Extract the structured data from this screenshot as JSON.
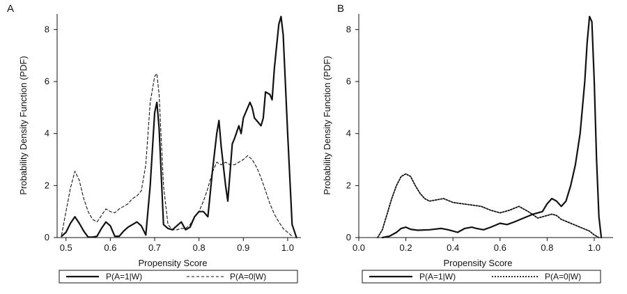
{
  "chart_data": [
    {
      "panel_label": "A",
      "type": "line",
      "xlabel": "Propensity Score",
      "ylabel": "Probability Density Function (PDF)",
      "xlim": [
        0.48,
        1.03
      ],
      "ylim": [
        0,
        8.6
      ],
      "xticks": [
        0.5,
        0.6,
        0.7,
        0.8,
        0.9,
        1.0
      ],
      "xtick_labels": [
        "0.5",
        "0.6",
        "0.7",
        "0.8",
        "0.9",
        "1.0"
      ],
      "yticks": [
        0,
        2,
        4,
        6,
        8
      ],
      "ytick_labels": [
        "0",
        "2",
        "4",
        "6",
        "8"
      ],
      "legend_position": "bottom",
      "series": [
        {
          "name": "P(A=1|W)",
          "style": "solid",
          "x": [
            0.49,
            0.5,
            0.51,
            0.52,
            0.53,
            0.54,
            0.55,
            0.56,
            0.57,
            0.58,
            0.59,
            0.6,
            0.61,
            0.62,
            0.63,
            0.64,
            0.65,
            0.66,
            0.67,
            0.68,
            0.69,
            0.7,
            0.705,
            0.71,
            0.72,
            0.73,
            0.74,
            0.75,
            0.76,
            0.77,
            0.78,
            0.79,
            0.8,
            0.81,
            0.82,
            0.83,
            0.84,
            0.845,
            0.85,
            0.86,
            0.865,
            0.87,
            0.875,
            0.88,
            0.89,
            0.895,
            0.9,
            0.91,
            0.915,
            0.92,
            0.925,
            0.93,
            0.94,
            0.945,
            0.95,
            0.96,
            0.965,
            0.97,
            0.98,
            0.985,
            0.99,
            1.0,
            1.01,
            1.02
          ],
          "y": [
            0.05,
            0.2,
            0.55,
            0.8,
            0.55,
            0.25,
            0.02,
            0.02,
            0.05,
            0.35,
            0.6,
            0.45,
            0.05,
            0.05,
            0.25,
            0.4,
            0.5,
            0.6,
            0.45,
            0.1,
            2.0,
            4.8,
            5.2,
            4.2,
            0.5,
            0.35,
            0.3,
            0.45,
            0.6,
            0.3,
            0.4,
            0.8,
            1.0,
            1.0,
            0.8,
            2.5,
            4.0,
            4.5,
            3.5,
            2.0,
            1.4,
            2.5,
            3.6,
            3.8,
            4.3,
            4.0,
            4.6,
            5.0,
            5.2,
            5.0,
            4.6,
            4.5,
            4.3,
            4.6,
            5.6,
            5.5,
            5.3,
            6.5,
            8.2,
            8.5,
            7.8,
            4.0,
            0.5,
            0.0
          ]
        },
        {
          "name": "P(A=0|W)",
          "style": "dashed",
          "x": [
            0.49,
            0.5,
            0.51,
            0.52,
            0.53,
            0.54,
            0.55,
            0.56,
            0.57,
            0.58,
            0.59,
            0.6,
            0.61,
            0.62,
            0.63,
            0.64,
            0.65,
            0.66,
            0.67,
            0.68,
            0.69,
            0.7,
            0.705,
            0.71,
            0.72,
            0.73,
            0.74,
            0.75,
            0.76,
            0.77,
            0.78,
            0.79,
            0.8,
            0.81,
            0.82,
            0.83,
            0.84,
            0.85,
            0.86,
            0.87,
            0.88,
            0.89,
            0.9,
            0.91,
            0.92,
            0.93,
            0.94,
            0.95,
            0.96,
            0.97,
            0.98,
            0.99,
            1.0,
            1.01
          ],
          "y": [
            0.1,
            1.0,
            1.9,
            2.55,
            2.2,
            1.5,
            1.0,
            0.7,
            0.6,
            0.85,
            1.1,
            1.0,
            0.95,
            1.1,
            1.2,
            1.3,
            1.5,
            1.6,
            1.8,
            2.8,
            5.2,
            6.2,
            6.3,
            5.5,
            2.0,
            0.5,
            0.3,
            0.3,
            0.35,
            0.35,
            0.5,
            0.8,
            1.0,
            1.4,
            1.9,
            2.5,
            2.9,
            2.8,
            2.9,
            2.8,
            2.8,
            2.9,
            3.0,
            3.15,
            3.0,
            2.7,
            2.3,
            1.8,
            1.3,
            0.9,
            0.6,
            0.35,
            0.2,
            0.05
          ]
        }
      ]
    },
    {
      "panel_label": "B",
      "type": "line",
      "xlabel": "Propensity Score",
      "ylabel": "Probability Density Function (PDF)",
      "xlim": [
        0.0,
        1.08
      ],
      "ylim": [
        0,
        8.6
      ],
      "xticks": [
        0.0,
        0.2,
        0.4,
        0.6,
        0.8,
        1.0
      ],
      "xtick_labels": [
        "0.0",
        "0.2",
        "0.4",
        "0.6",
        "0.8",
        "1.0"
      ],
      "yticks": [
        0,
        2,
        4,
        6,
        8
      ],
      "ytick_labels": [
        "0",
        "2",
        "4",
        "6",
        "8"
      ],
      "legend_position": "bottom",
      "series": [
        {
          "name": "P(A=1|W)",
          "style": "solid",
          "x": [
            0.1,
            0.13,
            0.16,
            0.18,
            0.2,
            0.22,
            0.25,
            0.3,
            0.35,
            0.38,
            0.42,
            0.45,
            0.48,
            0.5,
            0.53,
            0.56,
            0.6,
            0.63,
            0.66,
            0.7,
            0.74,
            0.78,
            0.8,
            0.82,
            0.84,
            0.86,
            0.88,
            0.9,
            0.92,
            0.94,
            0.96,
            0.97,
            0.98,
            0.99,
            1.0,
            1.01,
            1.02,
            1.03
          ],
          "y": [
            0.0,
            0.05,
            0.2,
            0.35,
            0.4,
            0.32,
            0.28,
            0.3,
            0.35,
            0.3,
            0.2,
            0.35,
            0.4,
            0.35,
            0.3,
            0.4,
            0.55,
            0.5,
            0.6,
            0.75,
            0.9,
            1.0,
            1.3,
            1.5,
            1.4,
            1.2,
            1.4,
            2.0,
            2.8,
            4.0,
            6.0,
            7.5,
            8.5,
            8.3,
            6.0,
            3.0,
            0.8,
            0.0
          ]
        },
        {
          "name": "P(A=0|W)",
          "style": "dotted",
          "x": [
            0.08,
            0.1,
            0.12,
            0.14,
            0.16,
            0.18,
            0.2,
            0.22,
            0.24,
            0.26,
            0.28,
            0.3,
            0.33,
            0.36,
            0.4,
            0.44,
            0.48,
            0.52,
            0.56,
            0.6,
            0.64,
            0.68,
            0.72,
            0.76,
            0.8,
            0.82,
            0.84,
            0.86,
            0.9,
            0.94,
            0.98,
            1.0,
            1.02
          ],
          "y": [
            0.0,
            0.3,
            0.9,
            1.5,
            2.0,
            2.35,
            2.45,
            2.35,
            2.0,
            1.7,
            1.5,
            1.4,
            1.45,
            1.5,
            1.35,
            1.3,
            1.25,
            1.2,
            1.05,
            0.95,
            1.05,
            1.2,
            1.0,
            0.75,
            0.85,
            0.9,
            0.85,
            0.7,
            0.55,
            0.4,
            0.25,
            0.1,
            0.0
          ]
        }
      ]
    }
  ]
}
